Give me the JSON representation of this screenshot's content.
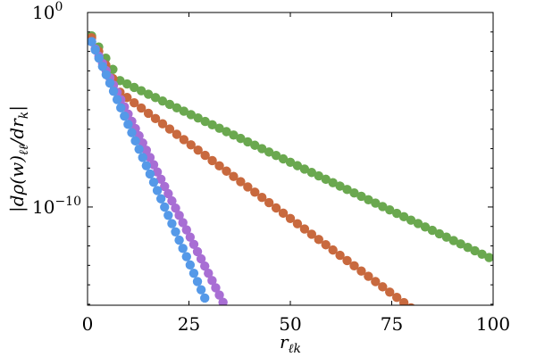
{
  "chart_data": {
    "type": "scatter",
    "xlabel": "r_ℓk",
    "ylabel": "|dρ(w)_ℓℓ/dr_k|",
    "xlim": [
      0,
      100
    ],
    "ylim_log10": [
      -15.05,
      0
    ],
    "y_scale": "log",
    "grid": false,
    "x_ticks": [
      {
        "value": 0,
        "label": "0"
      },
      {
        "value": 25,
        "label": "25"
      },
      {
        "value": 50,
        "label": "50"
      },
      {
        "value": 75,
        "label": "75"
      },
      {
        "value": 100,
        "label": "100"
      }
    ],
    "y_major_ticks": [
      {
        "log10": 0,
        "base": "10",
        "exp": "0"
      },
      {
        "log10": -10,
        "base": "10",
        "exp": "−10"
      }
    ],
    "series": [
      {
        "color": "#6aa84f",
        "x_start": 1,
        "x_step": 1.75,
        "x_end": 100,
        "model": "piecewise",
        "log10_y0": -1.2,
        "break_x": 8,
        "log10_y_break": -3.5,
        "slope_after": -0.1
      },
      {
        "color": "#c8693e",
        "x_start": 1,
        "x_step": 1.75,
        "x_end": 86,
        "model": "piecewise",
        "log10_y0": -1.3,
        "break_x": 8,
        "log10_y_break": -4.1,
        "slope_after": -0.1545
      },
      {
        "color": "#a86ed4",
        "x_start": 1,
        "x_step": 0.9,
        "x_end": 33.5,
        "model": "linear",
        "log10_y0": -1.5,
        "slope": -0.4135
      },
      {
        "color": "#5599e8",
        "x_start": 1,
        "x_step": 0.9,
        "x_end": 29.2,
        "model": "linear",
        "log10_y0": -1.5,
        "slope": -0.4724
      }
    ]
  }
}
